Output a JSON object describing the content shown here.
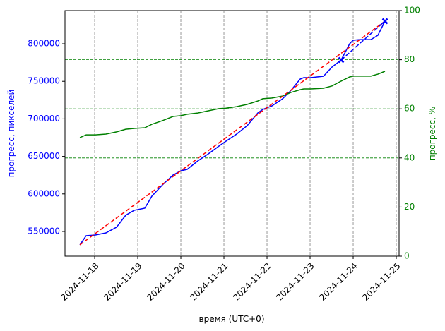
{
  "chart_data": {
    "type": "line",
    "xlabel": "время (UTC+0)",
    "ylabel": "прогресс, пикселей",
    "y2label": "прогресс, %",
    "ylabel_color": "#0000ff",
    "y2label_color": "#008000",
    "xlim": [
      "2024-11-17T07:28",
      "2024-11-25T01:34"
    ],
    "xticks": [
      "2024-11-18",
      "2024-11-19",
      "2024-11-20",
      "2024-11-21",
      "2024-11-22",
      "2024-11-23",
      "2024-11-24",
      "2024-11-25"
    ],
    "ylim": [
      517100,
      844200
    ],
    "yticks": [
      550000,
      600000,
      650000,
      700000,
      750000,
      800000
    ],
    "y2lim": [
      0,
      100
    ],
    "y2ticks": [
      0,
      20,
      40,
      60,
      80,
      100
    ],
    "xgrid": true,
    "y2grid": true,
    "x": [
      "2024-11-17T15:45",
      "2024-11-17T19:17",
      "2024-11-18T00:24",
      "2024-11-18T06:18",
      "2024-11-18T12:12",
      "2024-11-18T17:18",
      "2024-11-18T22:02",
      "2024-11-19T03:56",
      "2024-11-19T07:52",
      "2024-11-19T13:46",
      "2024-11-19T19:40",
      "2024-11-20T00:00",
      "2024-11-20T03:32",
      "2024-11-20T09:26",
      "2024-11-20T15:20",
      "2024-11-20T21:15",
      "2024-11-21T01:10",
      "2024-11-21T07:05",
      "2024-11-21T12:59",
      "2024-11-21T18:53",
      "2024-11-21T21:38",
      "2024-11-22T02:46",
      "2024-11-22T08:40",
      "2024-11-22T13:22",
      "2024-11-22T18:29",
      "2024-11-22T20:27",
      "2024-11-23T00:24",
      "2024-11-23T07:28",
      "2024-11-23T12:12",
      "2024-11-23T17:18",
      "2024-11-23T22:02",
      "2024-11-24T00:00",
      "2024-11-24T03:56",
      "2024-11-24T09:50",
      "2024-11-24T13:46",
      "2024-11-24T17:43"
    ],
    "series": [
      {
        "color": "#0000ff",
        "linestyle": "solid",
        "axis": "y",
        "values": [
          532200,
          544400,
          545300,
          548100,
          555700,
          571600,
          578200,
          581000,
          597000,
          612000,
          625200,
          630800,
          632700,
          644000,
          653400,
          663700,
          670300,
          679700,
          691000,
          707900,
          712600,
          717300,
          726700,
          738000,
          753000,
          754900,
          754900,
          756800,
          769000,
          778400,
          800000,
          804700,
          805600,
          805600,
          811300,
          830100
        ]
      },
      {
        "color": "#008000",
        "linestyle": "solid",
        "axis": "y2",
        "values": [
          48.3,
          49.4,
          49.4,
          49.7,
          50.6,
          51.7,
          52.0,
          52.3,
          53.7,
          55.2,
          56.9,
          57.2,
          57.8,
          58.3,
          59.2,
          60.1,
          60.3,
          60.9,
          61.8,
          63.2,
          64.1,
          64.4,
          65.2,
          66.7,
          67.8,
          68.1,
          68.1,
          68.4,
          69.3,
          71.3,
          73.0,
          73.3,
          73.3,
          73.3,
          74.1,
          75.3
        ]
      },
      {
        "color": "#ff0000",
        "linestyle": "dashed",
        "axis": "y",
        "x": [
          "2024-11-17T15:45",
          "2024-11-24T17:43"
        ],
        "values": [
          532200,
          830100
        ]
      },
      {
        "color": "#0000ff",
        "linestyle": "dashed",
        "axis": "y",
        "marker": "x",
        "x": [
          "2024-11-23T17:18",
          "2024-11-24T17:43"
        ],
        "values": [
          778400,
          830100
        ]
      }
    ]
  }
}
